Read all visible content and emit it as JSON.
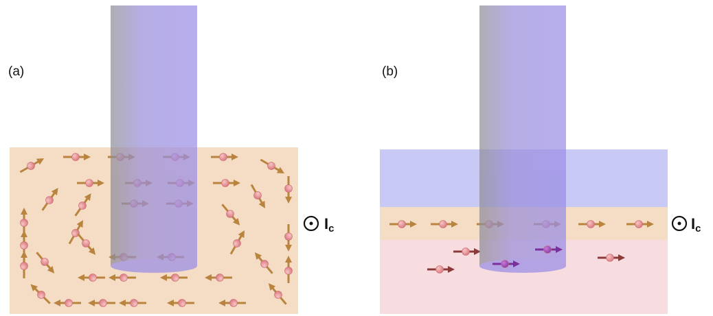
{
  "panels": [
    {
      "label": "(a)",
      "current_symbol": "I",
      "current_subscript": "c"
    },
    {
      "label": "(b)",
      "current_symbol": "I",
      "current_subscript": "c"
    }
  ]
}
